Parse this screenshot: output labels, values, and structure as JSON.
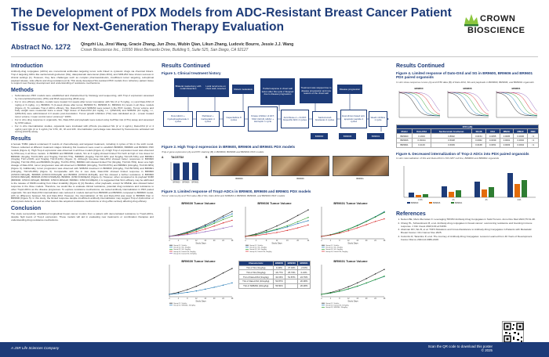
{
  "header": {
    "title_line1": "The Development of PDX Models from ADC-Resistant Breast Cancer Patient",
    "title_line2": "Tissue for Next-Generation Therapy Evaluation",
    "abstract_no": "Abstract No. 1272",
    "authors": "Qingzhi Liu, Jinxi Wang, Gracie Zhang, Jun Zhou, Wubin Qian, Likun Zhang, Ludovic Bourre, Jessie J.J. Wang",
    "affiliation": "Crown Bioscience Inc., 16550 West Bernardo Drive, Building 5, Suite 525, San Diego, CA 92127",
    "logo_word1": "CROWN",
    "logo_word2": "BIOSCIENCE"
  },
  "intro": {
    "heading": "Introduction",
    "text": "Antibody-drug conjugates (ADCs) are monoclonal antibodies targeting tumor cells linked to cytotoxic drugs via chemical linkers. Trop-2 targeting ADCs like sacituzumab govitecan (SG), datopotamab deruxtecan (Dato-DXd), and SKB-264 have shown success in clinical settings [1]. However, they face challenges such as complex pharmacokinetics, insufficient tumor targeting, suboptimal payload release, side effects and drug resistance [2,3]. This study developed SG-resistant PDX models from refractory patient tissue to support new therapy development and understanding of resistance mechanisms."
  },
  "methods": {
    "heading": "Methods",
    "bullets": [
      "Subcutaneous PDX models were established and characterized by histology and sequencing, with Trop-2 expression assessed by immunohistochemistry (IHC) and RNA sequencing (RNA-seq).",
      "For in vivo efficacy studies, models were treated 3-4 weeks after tumor inoculation with SG (3 or 5 mg/kg, i.v.) and Dato-DXd (3 mg/kg or 6 mg/kg, i.v.), BR9601: 5 (2-week phase after tumor, BR9600 5×, BR9606 3×, BR9601 3×) levels in all three models (Figure 2). To evaluate Trop-2 ADCs efficacy, SG, Dato-DXd and SKB264 were tested in the PDX models. Tumor volume and body weight were measured twice a week. High doses of Dato-DXd (10 mg/kg, i.v., Q3Wx3/4) and SKB264 (10 mg/kg, i.v., Q3Wx3/4) were administered 2-3 weeks post-inoculation. Tumor growth inhibition (TGI) was calculated as [1 - (mean treated tumor volume / mean control tumor volume)] * 100%.",
      "For in vitro drug response in organoids, SG, Dato-DXd and payloads were tested using CellTiter-Glo (CTG) assay and assessed by IC50 values.",
      "For in vitro internalization studies, organoids were incubated with pHrodo pre-stained SG (2 or 4 ug/mL), Dato-DXd (2 or 4 ug/mL) and IgG (2 or 4 ug/mL) for 0.5h, 2h, 4h and 24h. Internalization percentage was detected by fluorescence activated cell sorting (FACS) assay."
    ]
  },
  "results1": {
    "heading": "Results",
    "text": "A female TNBC patient underwent 8 rounds of chemotherapy and targeted treatment, including 2 cycles of SG in the sixth round. Tissues collected at different treatment stages following SG treatment were used to establish BR9600, BR9606 and BR9601 PDX models (Figure 1). High Trop-2 expression was observed in all three models (Figure 2). A high Trop-2 expression level was observed by RNA-seq in all three models. In BR9600 and BR9606 models, SG at 3 mg/kg showed limited TGI both at high or low doses for BR9600 (3mg/kg TGI=9.49% and 5mg/kg TGI=16.77%), BR9606 (3mg/kg TGI=37.32% and 5mg/kg TGI=25.73%) and BR9601 (3mg/kg TGI=-2.63% and 5mg/kg TGI=0.21%) (Figure 3). Although low-dose Dato-DXd showed better responses in BR9600 (3mg/kg, TGI=32.15%) and BR9606 (3mg/kg, TGI=51.87%), BR9601 still showed limited TGI (3mg/kg, TGI=24.79%). Even at a high dosage of Dato-DXd, tumor progression was still observed in BR9600 (10mg/kg, TGI=53.87%) and BR9601 (10mg/kg, TGI=20.38%) (Figure 3). Additionally, tumor progression was observed with SKB264 treatment in BR9600 (10mg/kg, TGI=56.50%) and BR9601 (10mg/kg, TGI=26.28%) (Figure 3). Comparable with the in vivo data, Dato-DXd showed limited response in BR9600 (IC50=0.1904μM), BR9606 (IC50=0.03314μM) and BR9601 (IC50=0.4133μM), and SG showed a further resistance in BR9600 (IC50=0.8902μM), BR9606 (IC50=0.5028μM), BR9601 (IC50=0.6009μM) (Figure 4). However, when compared to its payload SN38 (BR9600: IC50=0.0154μM, BR9606: IC50=0.0062μM, BR9601: IC50=0.0168μM), it is suggested that SG's efficacy may be attributed to the release of SN38 resulting from linker instability (Figure 4) [4]. Besides, other payloads, except for MMAE, also showed better response in the three models. Therefore, we would like to evaluate clinical resistance, potential drug resistance and resistance to other Trop2-ADCs as the disease progresses. To explore resistance mechanisms, we tested antibody internalization in PDX paired organoids. SG and Dato-DXd internalization was reduced in models derived from BR9606 and BR9601 compared to BR9600 model, with no difference between SG and Dato-DXd. However, the internalization of SG and Dato-DXd was lower in BR9606 than in BR9600 (Figure 5). In this study, the limited response despite insufficient antibody internalization may suggest Trop-2 dysfunction or endocytosis defects, as well as other factors like acquired resistance mechanisms or drug efflux actively affecting drug efficacy."
  },
  "conclusion": {
    "heading": "Conclusion",
    "text": "The study successfully established longitudinal breast cancer models from a patient with demonstrated resistance to Trop2-ADCs, despite high levels of Trop-2 expression. These models will aid in evaluating new treatments or combination therapies and understanding drug resistance mechanisms."
  },
  "results_cont": {
    "heading": "Results Continued",
    "fig1_title": "Figure 1. Clinical treatment history",
    "fig2_title": "Figure 2. High Trop-2 expression in BR9600, BR9606 and BR9601 PDX models",
    "fig2_sub": "Trop-2 gene expression (A) and IHC staining (B) in BR9600, BR9606 and BR9601 PDX models",
    "fig3_title": "Figure 3. Limited response of Trop2-ADCs in BR9600, BR9606 and BR9601 PDX models",
    "fig3_sub": "Tumor volume (A) and TGI value (B) of SG, Dato-DXd and SKB264 in BR9600, BR9606, and BR9601 PDX models",
    "fig2_gene_label": "TACSTD2",
    "panel_a": "A",
    "panel_b": "B"
  },
  "flow": {
    "boxes": [
      "Bilateral mastectomy with nodal dissection",
      "Local recurrence on chest wall, resected",
      "Distant metastasis",
      "Partial response in chest wall lesion after SG cycle 2 Stopped due to disease progression",
      "Treatment was stopped due to disease progression and new lesions on the chest wall",
      "Disease progression",
      "Doxorubicin + Cyclophosphamide 4 cycles",
      "Paclitaxel + Carboplatin 4 cycles",
      "Capecitabine 8 cycles",
      "Kinase inhibitor of AKT, TAM, IGF1R, HDAC + Herceptin 1 cycle",
      "Anti-Nkuse-1 + D-DFX bispecific ADC 4 cycles",
      "Sacituzumab Govitecan 2 cycles",
      "Everolimus based anti-apoptotic peptide 2 cycles",
      "Weel1 inhibitor 1 cycle",
      "BR9600",
      "BR9606",
      "BR9601"
    ]
  },
  "ihc_labels": [
    "BR9600",
    "BR9606",
    "BR9601"
  ],
  "chart_data": [
    {
      "type": "bar",
      "title": "TACSTD2",
      "categories": [
        "BR9600",
        "BR9606",
        "BR9601"
      ],
      "values": [
        11.2,
        11.8,
        11.5
      ],
      "ylim": [
        0,
        12
      ]
    },
    {
      "type": "line",
      "title": "BR9600 Tumor Volume",
      "xlabel": "Study Days",
      "x": [
        0,
        4,
        8,
        12,
        16,
        20,
        24,
        28
      ],
      "series": [
        {
          "name": "Group 01, Vehicle",
          "values": [
            150,
            260,
            420,
            620,
            860,
            1130,
            1420,
            1700
          ]
        },
        {
          "name": "Group 02, SG, 3mg/kg",
          "values": [
            150,
            240,
            390,
            580,
            800,
            1050,
            1320,
            1550
          ]
        },
        {
          "name": "Group 03, SG, 5mg/kg",
          "values": [
            150,
            230,
            370,
            540,
            740,
            960,
            1200,
            1410
          ]
        },
        {
          "name": "Group 04, Dato-DXd, 3mg/kg",
          "values": [
            150,
            220,
            320,
            450,
            610,
            790,
            990,
            1150
          ]
        },
        {
          "name": "Group 05, Dato-DXd, 10mg/kg",
          "values": [
            150,
            200,
            260,
            340,
            440,
            540,
            660,
            780
          ]
        }
      ]
    },
    {
      "type": "line",
      "title": "BR9606 Tumor Volume",
      "xlabel": "Study Days",
      "x": [
        0,
        4,
        8,
        12,
        16,
        20,
        24
      ],
      "series": [
        {
          "name": "Group 01, Vehicle",
          "values": [
            150,
            300,
            520,
            800,
            1100,
            1450,
            1800
          ]
        },
        {
          "name": "Group 02, SG, 3mg/kg",
          "values": [
            150,
            250,
            400,
            560,
            740,
            950,
            1130
          ]
        },
        {
          "name": "Group 03, SG, 5mg/kg",
          "values": [
            150,
            260,
            430,
            600,
            810,
            1060,
            1330
          ]
        },
        {
          "name": "Group 04, Dato-DXd, 3mg/kg",
          "values": [
            150,
            200,
            290,
            390,
            520,
            680,
            860
          ]
        }
      ]
    },
    {
      "type": "line",
      "title": "BR9601 Tumor Volume",
      "xlabel": "Study Days",
      "x": [
        0,
        4,
        8,
        12,
        16,
        20,
        24,
        28
      ],
      "series": [
        {
          "name": "Group 01, Vehicle",
          "values": [
            150,
            250,
            400,
            590,
            820,
            1080,
            1360,
            1650
          ]
        },
        {
          "name": "Group 02, SG, 3mg/kg",
          "values": [
            150,
            255,
            410,
            600,
            840,
            1100,
            1380,
            1690
          ]
        },
        {
          "name": "Group 03, SG, 5mg/kg",
          "values": [
            150,
            250,
            400,
            595,
            825,
            1085,
            1360,
            1650
          ]
        },
        {
          "name": "Group 04, Dato-DXd, 3mg/kg",
          "values": [
            150,
            230,
            350,
            500,
            680,
            880,
            1080,
            1240
          ]
        }
      ]
    },
    {
      "type": "line",
      "title": "BR9600 Tumor Volume",
      "xlabel": "Study Days",
      "x": [
        0,
        4,
        8,
        12,
        16,
        20,
        24,
        28
      ],
      "series": [
        {
          "name": "Group 01, Vehicle",
          "values": [
            150,
            270,
            440,
            650,
            900,
            1180,
            1480,
            1760
          ]
        },
        {
          "name": "Group 02, SKB264, 10mg/kg",
          "values": [
            150,
            200,
            270,
            360,
            470,
            590,
            720,
            860
          ]
        }
      ]
    },
    {
      "type": "line",
      "title": "BR9601 Tumor Volume",
      "xlabel": "Study Days",
      "x": [
        0,
        4,
        8,
        12,
        16,
        20,
        24,
        28
      ],
      "series": [
        {
          "name": "Group 01, Vehicle",
          "values": [
            150,
            260,
            420,
            620,
            860,
            1130,
            1420,
            1700
          ]
        },
        {
          "name": "Group 02, Dato-DXd, 10mg/kg",
          "values": [
            150,
            220,
            330,
            480,
            650,
            850,
            1060,
            1260
          ]
        },
        {
          "name": "Group 03, SKB264, 10mg/kg",
          "values": [
            150,
            230,
            340,
            490,
            660,
            860,
            1070,
            1280
          ]
        }
      ]
    },
    {
      "type": "table",
      "title": "TGI",
      "columns": [
        "Characteristic",
        "BR9600",
        "BR9606",
        "BR9601"
      ],
      "rows": [
        [
          "TGI of SG (3mg/kg)",
          "9.49%",
          "37.32%",
          "-2.63%"
        ],
        [
          "TGI of SG (5mg/kg)",
          "16.77%",
          "25.73%",
          "0.21%"
        ],
        [
          "TGI of Dato-DXd (3mg/kg)",
          "32.15%",
          "51.87%",
          "24.79%"
        ],
        [
          "TGI of Dato-DXd (10mg/kg)",
          "53.87%",
          "",
          "20.38%"
        ],
        [
          "TGI of SKB264 (10mg/kg)",
          "56.50%",
          "",
          "26.28%"
        ]
      ]
    },
    {
      "type": "table",
      "title": "IC50 (uM)",
      "columns": [
        "Model",
        "Dato-DXd",
        "Sacituzumab Govitecan",
        "SN-38",
        "DXd",
        "MMAE",
        "MMAF",
        "PBD"
      ],
      "rows": [
        [
          "BR9600",
          "0.1904",
          "0.8902",
          "0.0154",
          "0.0355",
          "0.0005",
          "0.0006",
          "<1"
        ],
        [
          "BR9606",
          "0.03314",
          "0.5028",
          "0.0062",
          "0.0039",
          "0.0001",
          "0.0002",
          "<1"
        ],
        [
          "BR9601",
          "0.4133",
          "0.6009",
          "0.0168",
          "0.0451",
          "0.0003",
          "0.0004",
          "<1"
        ]
      ]
    },
    {
      "type": "bar",
      "title": "Internalization",
      "categories": [
        "0.5h",
        "2h",
        "4h",
        "24h"
      ],
      "series": [
        {
          "name": "BR9600",
          "values": [
            12,
            28,
            40,
            62
          ]
        },
        {
          "name": "BR9606",
          "values": [
            6,
            14,
            20,
            34
          ]
        },
        {
          "name": "BR9601",
          "values": [
            8,
            18,
            26,
            44
          ]
        }
      ],
      "ylim": [
        0,
        80
      ]
    }
  ],
  "fig4": {
    "title": "Figure 4. Limited response of Dato-DXd and SG in BR9600, BR9606 and BR9601 PDX paired organoids",
    "sub": "In vitro dose-response curves (A) and IC50 data (B) of Dato-DXd, SG and payloads in BR9600, BR9606, and BR9601 organoids"
  },
  "fig5": {
    "title": "Figure 6. Decreased internalization of Trop-2 ADCs into PDX paired organoids",
    "sub": "In vitro internalization of SG and Dato-DXd in NCI-N87 cell line, BR9600 and BR9601 organoids"
  },
  "refs": {
    "heading": "References",
    "items": [
      "Nelson BE, Meric-Bernstam F. Leveraging TROP2 Antibody-Drug Conjugates in Solid Tumors. Annu Rev Med 2024;75:31-48.",
      "Chang HL, Schwettmann B, et al. Antibody-drug conjugates in breast cancer: overcoming resistance and boosting immune response. J Clin Invest 2023;133:e172156.",
      "Abelman RO, Wu B, et al. TOP1 Mutations and Cross-Resistance to Antibody-Drug Conjugates in Patients with Metastatic Breast Cancer. Clin Cancer Res 2025.",
      "Colombo R, Tarantino P, et al. The Journey of Antibody-Drug Conjugates: Lessons Learned from 40 Years of Development. Cancer Discov 2024;14:2089-2108."
    ]
  },
  "footer": {
    "left": "A JSR Life Sciences Company",
    "qr_note": "Scan the QR code to download this poster",
    "copyright": "© 2025"
  },
  "colors": {
    "navy": "#1d3b78",
    "green": "#2e7d32",
    "orange": "#e36c0a"
  }
}
